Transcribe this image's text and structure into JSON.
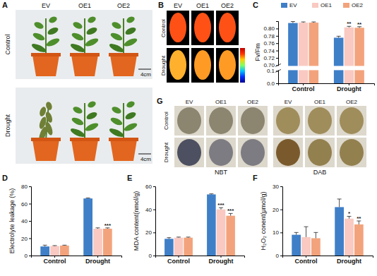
{
  "photos": {
    "A": {
      "panel": "A",
      "columns": [
        "EV",
        "OE1",
        "OE2"
      ],
      "rows": [
        "Control",
        "Drought"
      ],
      "scale_bar": [
        "4cm",
        "4cm"
      ]
    },
    "B": {
      "panel": "B",
      "columns": [
        "EV",
        "OE1",
        "OE2"
      ],
      "rows": [
        "Control",
        "Drought"
      ]
    },
    "G": {
      "panel": "G",
      "rows": [
        "Control",
        "Drought"
      ],
      "groups": [
        {
          "label": "NBT",
          "columns": [
            "EV",
            "OE1",
            "OE2"
          ]
        },
        {
          "label": "DAB",
          "columns": [
            "EV",
            "OE1",
            "OE2"
          ]
        }
      ]
    }
  },
  "chart_data": [
    {
      "type": "bar",
      "panel": "C",
      "ylabel": "Fv/Fm",
      "categories": [
        "Control",
        "Drought"
      ],
      "series": [
        {
          "name": "EV",
          "color": "#3f7fc8",
          "values": [
            0.815,
            0.775
          ],
          "errors": [
            0.004,
            0.004
          ]
        },
        {
          "name": "OE1",
          "color": "#f9c9c2",
          "values": [
            0.816,
            0.803
          ],
          "errors": [
            0.002,
            0.003
          ],
          "annotations": [
            null,
            "**"
          ]
        },
        {
          "name": "OE2",
          "color": "#f3a37c",
          "values": [
            0.816,
            0.802
          ],
          "errors": [
            0.002,
            0.003
          ],
          "annotations": [
            null,
            "**"
          ]
        }
      ],
      "ylim": [
        0,
        0.82
      ],
      "yticks": [
        {
          "value": 0,
          "label": "0.0"
        },
        0.1,
        {
          "value": 0.7,
          "label": "0.70"
        },
        0.72,
        0.74,
        0.76,
        0.78,
        {
          "value": 0.8,
          "label": "0.80"
        }
      ],
      "legend": "top"
    },
    {
      "type": "bar",
      "panel": "D",
      "ylabel": "Electrolyte leakage (%)",
      "categories": [
        "Control",
        "Drought"
      ],
      "series": [
        {
          "color": "#3f7fc8",
          "values": [
            10.5,
            66
          ],
          "errors": [
            1.5,
            0.6
          ]
        },
        {
          "color": "#f9c9c2",
          "values": [
            11,
            31
          ],
          "errors": [
            0.5,
            1
          ]
        },
        {
          "color": "#f3a37c",
          "values": [
            11.5,
            31
          ],
          "errors": [
            0.5,
            1
          ],
          "annotations": [
            null,
            "***"
          ]
        }
      ],
      "ylim": [
        0,
        80
      ],
      "yticks": [
        0,
        20,
        40,
        60,
        80
      ]
    },
    {
      "type": "bar",
      "panel": "E",
      "ylabel": "MDA content(nmol/g)",
      "categories": [
        "Control",
        "Drought"
      ],
      "series": [
        {
          "color": "#3f7fc8",
          "values": [
            14.5,
            53
          ],
          "errors": [
            1,
            0.5
          ]
        },
        {
          "color": "#f9c9c2",
          "values": [
            15.5,
            40
          ],
          "errors": [
            0.5,
            1.5
          ],
          "annotations": [
            null,
            "***"
          ]
        },
        {
          "color": "#f3a37c",
          "values": [
            15.5,
            34.5
          ],
          "errors": [
            0.5,
            2
          ],
          "annotations": [
            null,
            "***"
          ]
        }
      ],
      "ylim": [
        0,
        60
      ],
      "yticks": [
        0,
        20,
        40,
        60
      ]
    },
    {
      "type": "bar",
      "panel": "F",
      "ylabel": "H₂O₂ conent(μmol/g)",
      "categories": [
        "Control",
        "Drought"
      ],
      "series": [
        {
          "color": "#3f7fc8",
          "values": [
            9,
            21
          ],
          "errors": [
            1,
            3.5
          ]
        },
        {
          "color": "#f9c9c2",
          "values": [
            8,
            16
          ],
          "errors": [
            4.5,
            1
          ],
          "annotations": [
            null,
            "*"
          ]
        },
        {
          "color": "#f3a37c",
          "values": [
            7.5,
            13.5
          ],
          "errors": [
            2.5,
            1.5
          ],
          "annotations": [
            null,
            "**"
          ]
        }
      ],
      "ylim": [
        0,
        30
      ],
      "yticks": [
        0,
        10,
        20,
        30
      ]
    }
  ]
}
